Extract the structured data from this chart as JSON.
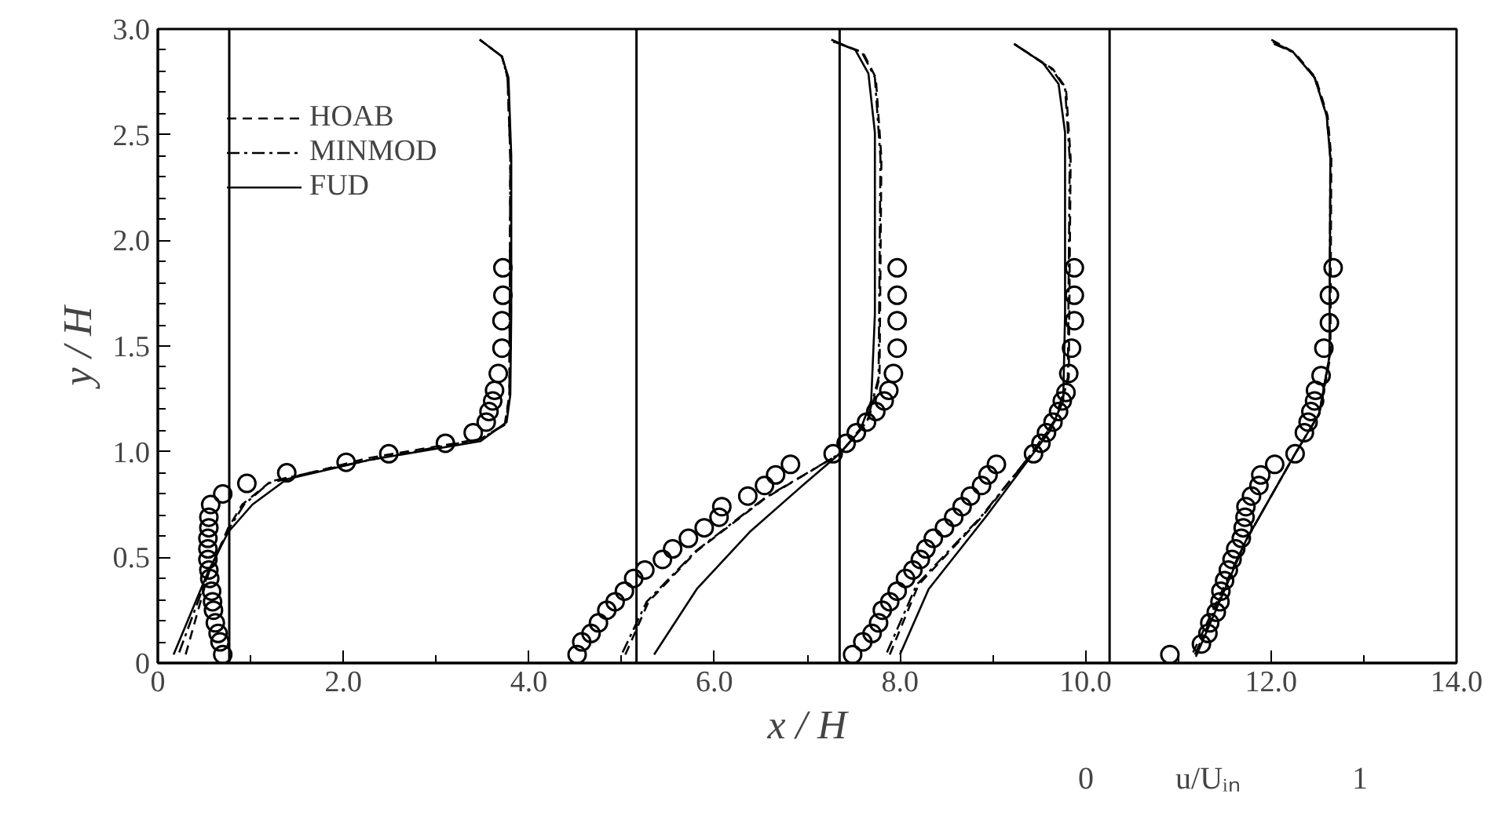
{
  "chart_data": {
    "type": "line",
    "xlabel": "x / H",
    "ylabel": "y / H",
    "xlim": [
      0,
      14
    ],
    "ylim": [
      0,
      3
    ],
    "xticks": [
      {
        "value": 0,
        "label": "0"
      },
      {
        "value": 1,
        "label": null
      },
      {
        "value": 2,
        "label": "2.0"
      },
      {
        "value": 3,
        "label": null
      },
      {
        "value": 4,
        "label": "4.0"
      },
      {
        "value": 5,
        "label": null
      },
      {
        "value": 6,
        "label": "6.0"
      },
      {
        "value": 7,
        "label": null
      },
      {
        "value": 8,
        "label": "8.0"
      },
      {
        "value": 9,
        "label": null
      },
      {
        "value": 10,
        "label": "10.0"
      },
      {
        "value": 11,
        "label": null
      },
      {
        "value": 12,
        "label": "12.0"
      },
      {
        "value": 13,
        "label": null
      },
      {
        "value": 14,
        "label": "14.0"
      }
    ],
    "yticks": [
      {
        "value": 0,
        "label": "0"
      },
      {
        "value": 0.1,
        "label": null
      },
      {
        "value": 0.2,
        "label": null
      },
      {
        "value": 0.3,
        "label": null
      },
      {
        "value": 0.4,
        "label": null
      },
      {
        "value": 0.5,
        "label": "0.5"
      },
      {
        "value": 0.6,
        "label": null
      },
      {
        "value": 0.7,
        "label": null
      },
      {
        "value": 0.8,
        "label": null
      },
      {
        "value": 0.9,
        "label": null
      },
      {
        "value": 1,
        "label": "1.0"
      },
      {
        "value": 1.1,
        "label": null
      },
      {
        "value": 1.2,
        "label": null
      },
      {
        "value": 1.3,
        "label": null
      },
      {
        "value": 1.4,
        "label": null
      },
      {
        "value": 1.5,
        "label": "1.5"
      },
      {
        "value": 1.6,
        "label": null
      },
      {
        "value": 1.7,
        "label": null
      },
      {
        "value": 1.8,
        "label": null
      },
      {
        "value": 1.9,
        "label": null
      },
      {
        "value": 2,
        "label": "2.0"
      },
      {
        "value": 2.1,
        "label": null
      },
      {
        "value": 2.2,
        "label": null
      },
      {
        "value": 2.3,
        "label": null
      },
      {
        "value": 2.4,
        "label": null
      },
      {
        "value": 2.5,
        "label": "2.5"
      },
      {
        "value": 2.6,
        "label": null
      },
      {
        "value": 2.7,
        "label": null
      },
      {
        "value": 2.8,
        "label": null
      },
      {
        "value": 2.9,
        "label": null
      },
      {
        "value": 3,
        "label": "3.0"
      }
    ],
    "grid": false,
    "legend": "top left",
    "ref_lines": [
      {
        "axis": "x",
        "value": 0.77,
        "color": "#000000"
      },
      {
        "axis": "x",
        "value": 5.16,
        "color": "#000000"
      },
      {
        "axis": "x",
        "value": 7.35,
        "color": "#000000"
      },
      {
        "axis": "x",
        "value": 10.26,
        "color": "#000000"
      }
    ],
    "annotations": [
      "0",
      "u/Uᵢₙ",
      "1"
    ],
    "series": [
      {
        "name": "HOAB",
        "type": "line",
        "line_style": "dashed",
        "color": "#000000",
        "x": [
          0.3,
          0.55,
          0.76,
          0.91,
          1.19,
          2.27,
          3.48,
          3.74,
          3.79,
          3.8,
          3.77,
          3.71,
          3.47
        ],
        "values": [
          0.04,
          0.43,
          0.64,
          0.75,
          0.85,
          0.97,
          1.06,
          1.13,
          1.27,
          2.4,
          2.77,
          2.87,
          2.95
        ]
      },
      {
        "name": "MINMOD",
        "type": "line",
        "line_style": "dashdot",
        "color": "#000000",
        "x": [
          0.23,
          0.55,
          0.76,
          0.93,
          1.22,
          2.27,
          3.48,
          3.75,
          3.79,
          3.8,
          3.77,
          3.71,
          3.47
        ],
        "values": [
          0.05,
          0.43,
          0.63,
          0.75,
          0.86,
          0.96,
          1.06,
          1.13,
          1.27,
          2.4,
          2.77,
          2.87,
          2.95
        ]
      },
      {
        "name": "FUD",
        "type": "line",
        "line_style": "solid",
        "color": "#000000",
        "x": [
          0.17,
          0.55,
          0.76,
          1.02,
          1.39,
          2.27,
          3.48,
          3.76,
          3.8,
          3.81,
          3.81,
          3.78,
          3.71,
          3.47
        ],
        "values": [
          0.04,
          0.44,
          0.62,
          0.75,
          0.87,
          0.96,
          1.05,
          1.14,
          1.27,
          1.65,
          2.4,
          2.77,
          2.87,
          2.95
        ]
      },
      {
        "type": "line",
        "line_style": "dashed",
        "color": "#000000",
        "x": [
          5.04,
          5.29,
          5.81,
          6.55,
          7.35,
          7.66,
          7.78,
          7.8,
          7.74,
          7.6,
          7.29
        ],
        "values": [
          0.04,
          0.29,
          0.53,
          0.78,
          0.99,
          1.15,
          1.35,
          2.39,
          2.77,
          2.89,
          2.94
        ]
      },
      {
        "type": "line",
        "line_style": "dashdot",
        "color": "#000000",
        "x": [
          5.01,
          5.27,
          5.8,
          6.54,
          7.35,
          7.65,
          7.77,
          7.79,
          7.73,
          7.59,
          7.28
        ],
        "values": [
          0.05,
          0.29,
          0.53,
          0.78,
          0.99,
          1.15,
          1.35,
          2.39,
          2.77,
          2.89,
          2.94
        ]
      },
      {
        "type": "line",
        "line_style": "solid",
        "color": "#000000",
        "x": [
          5.35,
          5.81,
          6.38,
          6.95,
          7.35,
          7.57,
          7.69,
          7.73,
          7.73,
          7.66,
          7.52,
          7.26
        ],
        "values": [
          0.04,
          0.35,
          0.62,
          0.84,
          0.99,
          1.1,
          1.24,
          1.65,
          2.51,
          2.79,
          2.9,
          2.95
        ]
      },
      {
        "type": "line",
        "line_style": "dashed",
        "color": "#000000",
        "x": [
          7.89,
          8.2,
          8.88,
          9.4,
          9.68,
          9.82,
          9.84,
          9.79,
          9.65,
          9.23
        ],
        "values": [
          0.04,
          0.37,
          0.69,
          0.98,
          1.15,
          1.35,
          2.39,
          2.72,
          2.81,
          2.93
        ]
      },
      {
        "type": "line",
        "line_style": "dashdot",
        "color": "#000000",
        "x": [
          7.86,
          8.18,
          8.87,
          9.4,
          9.67,
          9.81,
          9.83,
          9.78,
          9.64,
          9.23
        ],
        "values": [
          0.05,
          0.37,
          0.69,
          0.98,
          1.15,
          1.35,
          2.39,
          2.72,
          2.81,
          2.93
        ]
      },
      {
        "type": "line",
        "line_style": "solid",
        "color": "#000000",
        "x": [
          8.0,
          8.31,
          8.94,
          9.4,
          9.62,
          9.76,
          9.78,
          9.78,
          9.71,
          9.54,
          9.23
        ],
        "values": [
          0.04,
          0.35,
          0.7,
          0.97,
          1.1,
          1.24,
          1.65,
          2.51,
          2.74,
          2.84,
          2.93
        ]
      },
      {
        "type": "line",
        "line_style": "dashed",
        "color": "#000000",
        "x": [
          11.16,
          11.73,
          12.26,
          12.52,
          12.64,
          12.65,
          12.61,
          12.48,
          12.25,
          12.0
        ],
        "values": [
          0.05,
          0.58,
          0.99,
          1.18,
          1.45,
          2.39,
          2.59,
          2.77,
          2.89,
          2.95
        ]
      },
      {
        "type": "line",
        "line_style": "dashdot",
        "color": "#000000",
        "x": [
          11.18,
          11.73,
          12.26,
          12.52,
          12.63,
          12.64,
          12.6,
          12.47,
          12.24,
          12.03
        ],
        "values": [
          0.04,
          0.58,
          0.99,
          1.18,
          1.45,
          2.39,
          2.59,
          2.77,
          2.89,
          2.93
        ]
      },
      {
        "type": "line",
        "line_style": "solid",
        "color": "#000000",
        "x": [
          11.19,
          11.73,
          12.26,
          12.52,
          12.63,
          12.64,
          12.6,
          12.47,
          12.24,
          12.02
        ],
        "values": [
          0.03,
          0.58,
          0.99,
          1.18,
          1.45,
          2.39,
          2.59,
          2.77,
          2.89,
          2.94
        ]
      },
      {
        "type": "scatter",
        "marker": "circle",
        "color": "#000000",
        "x": [
          0.7,
          0.67,
          0.65,
          0.62,
          0.6,
          0.59,
          0.58,
          0.56,
          0.55,
          0.54,
          0.54,
          0.54,
          0.55,
          0.55,
          0.57,
          0.7,
          0.96,
          1.39,
          2.03,
          2.49,
          3.1,
          3.4,
          3.54,
          3.57,
          3.61,
          3.63,
          3.67,
          3.71,
          3.71,
          3.72,
          3.72
        ],
        "values": [
          0.04,
          0.1,
          0.14,
          0.19,
          0.25,
          0.29,
          0.34,
          0.4,
          0.44,
          0.49,
          0.54,
          0.59,
          0.64,
          0.69,
          0.75,
          0.8,
          0.85,
          0.9,
          0.95,
          0.99,
          1.04,
          1.09,
          1.14,
          1.19,
          1.24,
          1.29,
          1.37,
          1.49,
          1.62,
          1.74,
          1.87
        ]
      },
      {
        "type": "scatter",
        "marker": "circle",
        "color": "#000000",
        "x": [
          4.52,
          4.57,
          4.67,
          4.75,
          4.84,
          4.93,
          5.03,
          5.13,
          5.25,
          5.44,
          5.55,
          5.72,
          5.89,
          6.05,
          6.08,
          6.36,
          6.54,
          6.66,
          6.82,
          7.28,
          7.42,
          7.53,
          7.64,
          7.74,
          7.83,
          7.88,
          7.93,
          7.97,
          7.97,
          7.97,
          7.97
        ],
        "values": [
          0.04,
          0.1,
          0.14,
          0.19,
          0.25,
          0.29,
          0.34,
          0.4,
          0.44,
          0.49,
          0.54,
          0.59,
          0.64,
          0.69,
          0.74,
          0.79,
          0.84,
          0.89,
          0.94,
          0.99,
          1.04,
          1.09,
          1.14,
          1.19,
          1.24,
          1.29,
          1.37,
          1.49,
          1.62,
          1.74,
          1.87
        ]
      },
      {
        "type": "scatter",
        "marker": "circle",
        "color": "#000000",
        "x": [
          7.49,
          7.6,
          7.7,
          7.77,
          7.81,
          7.89,
          7.97,
          8.06,
          8.14,
          8.22,
          8.28,
          8.36,
          8.48,
          8.58,
          8.67,
          8.76,
          8.88,
          8.95,
          9.04,
          9.44,
          9.52,
          9.58,
          9.65,
          9.71,
          9.75,
          9.79,
          9.82,
          9.85,
          9.88,
          9.88,
          9.88
        ],
        "values": [
          0.04,
          0.1,
          0.14,
          0.19,
          0.25,
          0.29,
          0.34,
          0.4,
          0.44,
          0.49,
          0.54,
          0.59,
          0.64,
          0.69,
          0.74,
          0.79,
          0.84,
          0.89,
          0.94,
          0.99,
          1.04,
          1.09,
          1.14,
          1.19,
          1.24,
          1.28,
          1.37,
          1.49,
          1.62,
          1.74,
          1.87
        ]
      },
      {
        "type": "scatter",
        "marker": "circle",
        "color": "#000000",
        "x": [
          10.91,
          11.25,
          11.32,
          11.34,
          11.41,
          11.45,
          11.46,
          11.5,
          11.54,
          11.58,
          11.62,
          11.68,
          11.7,
          11.72,
          11.73,
          11.79,
          11.87,
          11.89,
          12.04,
          12.26,
          12.36,
          12.4,
          12.43,
          12.47,
          12.48,
          12.54,
          12.57,
          12.63,
          12.63,
          12.67
        ],
        "values": [
          0.04,
          0.09,
          0.14,
          0.19,
          0.24,
          0.29,
          0.34,
          0.39,
          0.44,
          0.49,
          0.54,
          0.59,
          0.64,
          0.69,
          0.74,
          0.79,
          0.84,
          0.89,
          0.94,
          0.99,
          1.09,
          1.14,
          1.19,
          1.24,
          1.29,
          1.36,
          1.49,
          1.61,
          1.74,
          1.87
        ]
      }
    ]
  }
}
